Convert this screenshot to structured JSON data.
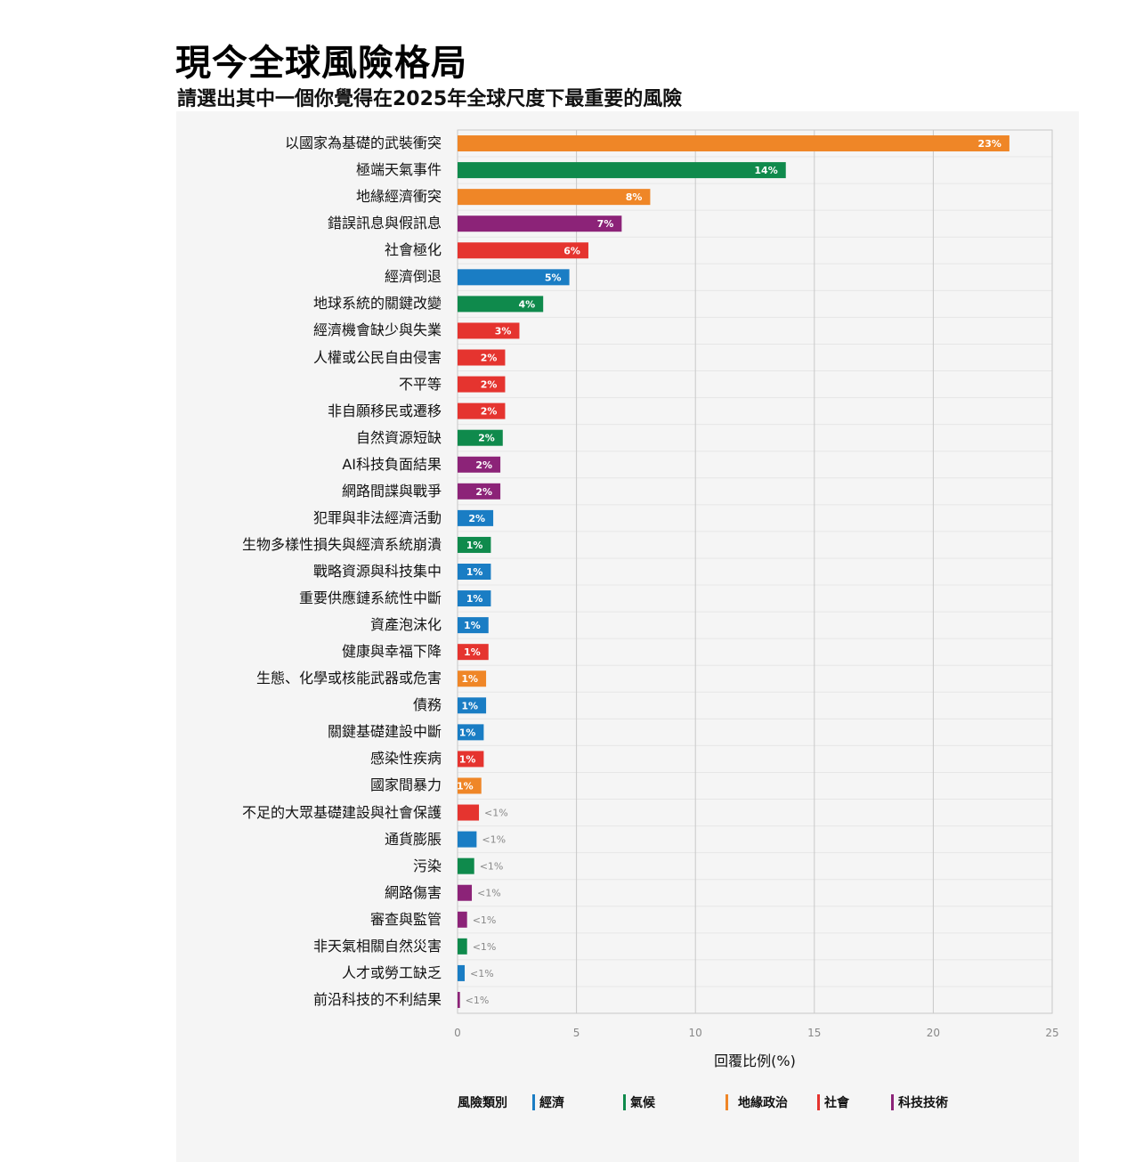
{
  "chart_data": {
    "type": "bar",
    "orientation": "horizontal",
    "title": "現今全球風險格局",
    "subtitle": "請選出其中一個你覺得在2025年全球尺度下最重要的風險",
    "xlabel": "回覆比例(%)",
    "xlim": [
      0,
      25
    ],
    "xticks": [
      "0",
      "5",
      "10",
      "15",
      "20",
      "25"
    ],
    "grid": true,
    "legend": {
      "title": "風險類別",
      "placement": "bottom",
      "items": [
        {
          "name": "經濟",
          "key": "economic"
        },
        {
          "name": "氣候",
          "key": "climate"
        },
        {
          "name": "地緣政治",
          "key": "geopolitical"
        },
        {
          "name": "社會",
          "key": "social"
        },
        {
          "name": "科技技術",
          "key": "tech"
        }
      ]
    },
    "colors": {
      "economic": "#1a7dc4",
      "climate": "#0f8a4c",
      "geopolitical": "#ef8627",
      "social": "#e5342f",
      "tech": "#8c2378"
    },
    "bars": [
      {
        "label": "以國家為基礎的武裝衝突",
        "value": 23.2,
        "text": "23%",
        "category": "geopolitical"
      },
      {
        "label": "極端天氣事件",
        "value": 13.8,
        "text": "14%",
        "category": "climate"
      },
      {
        "label": "地緣經濟衝突",
        "value": 8.1,
        "text": "8%",
        "category": "geopolitical"
      },
      {
        "label": "錯誤訊息與假訊息",
        "value": 6.9,
        "text": "7%",
        "category": "tech"
      },
      {
        "label": "社會極化",
        "value": 5.5,
        "text": "6%",
        "category": "social"
      },
      {
        "label": "經濟倒退",
        "value": 4.7,
        "text": "5%",
        "category": "economic"
      },
      {
        "label": "地球系統的關鍵改變",
        "value": 3.6,
        "text": "4%",
        "category": "climate"
      },
      {
        "label": "經濟機會缺少與失業",
        "value": 2.6,
        "text": "3%",
        "category": "social"
      },
      {
        "label": "人權或公民自由侵害",
        "value": 2.0,
        "text": "2%",
        "category": "social"
      },
      {
        "label": "不平等",
        "value": 2.0,
        "text": "2%",
        "category": "social"
      },
      {
        "label": "非自願移民或遷移",
        "value": 2.0,
        "text": "2%",
        "category": "social"
      },
      {
        "label": "自然資源短缺",
        "value": 1.9,
        "text": "2%",
        "category": "climate"
      },
      {
        "label": "AI科技負面結果",
        "value": 1.8,
        "text": "2%",
        "category": "tech"
      },
      {
        "label": "網路間諜與戰爭",
        "value": 1.8,
        "text": "2%",
        "category": "tech"
      },
      {
        "label": "犯罪與非法經濟活動",
        "value": 1.5,
        "text": "2%",
        "category": "economic"
      },
      {
        "label": "生物多樣性損失與經濟系統崩潰",
        "value": 1.4,
        "text": "1%",
        "category": "climate"
      },
      {
        "label": "戰略資源與科技集中",
        "value": 1.4,
        "text": "1%",
        "category": "economic"
      },
      {
        "label": "重要供應鏈系統性中斷",
        "value": 1.4,
        "text": "1%",
        "category": "economic"
      },
      {
        "label": "資產泡沫化",
        "value": 1.3,
        "text": "1%",
        "category": "economic"
      },
      {
        "label": "健康與幸福下降",
        "value": 1.3,
        "text": "1%",
        "category": "social"
      },
      {
        "label": "生態、化學或核能武器或危害",
        "value": 1.2,
        "text": "1%",
        "category": "geopolitical"
      },
      {
        "label": "債務",
        "value": 1.2,
        "text": "1%",
        "category": "economic"
      },
      {
        "label": "關鍵基礎建設中斷",
        "value": 1.1,
        "text": "1%",
        "category": "economic"
      },
      {
        "label": "感染性疾病",
        "value": 1.1,
        "text": "1%",
        "category": "social"
      },
      {
        "label": "國家間暴力",
        "value": 1.0,
        "text": "1%",
        "category": "geopolitical"
      },
      {
        "label": "不足的大眾基礎建設與社會保護",
        "value": 0.9,
        "text": "<1%",
        "category": "social"
      },
      {
        "label": "通貨膨脹",
        "value": 0.8,
        "text": "<1%",
        "category": "economic"
      },
      {
        "label": "污染",
        "value": 0.7,
        "text": "<1%",
        "category": "climate"
      },
      {
        "label": "網路傷害",
        "value": 0.6,
        "text": "<1%",
        "category": "tech"
      },
      {
        "label": "審查與監管",
        "value": 0.4,
        "text": "<1%",
        "category": "tech"
      },
      {
        "label": "非天氣相關自然災害",
        "value": 0.4,
        "text": "<1%",
        "category": "climate"
      },
      {
        "label": "人才或勞工缺乏",
        "value": 0.3,
        "text": "<1%",
        "category": "economic"
      },
      {
        "label": "前沿科技的不利結果",
        "value": 0.1,
        "text": "<1%",
        "category": "tech"
      }
    ]
  }
}
